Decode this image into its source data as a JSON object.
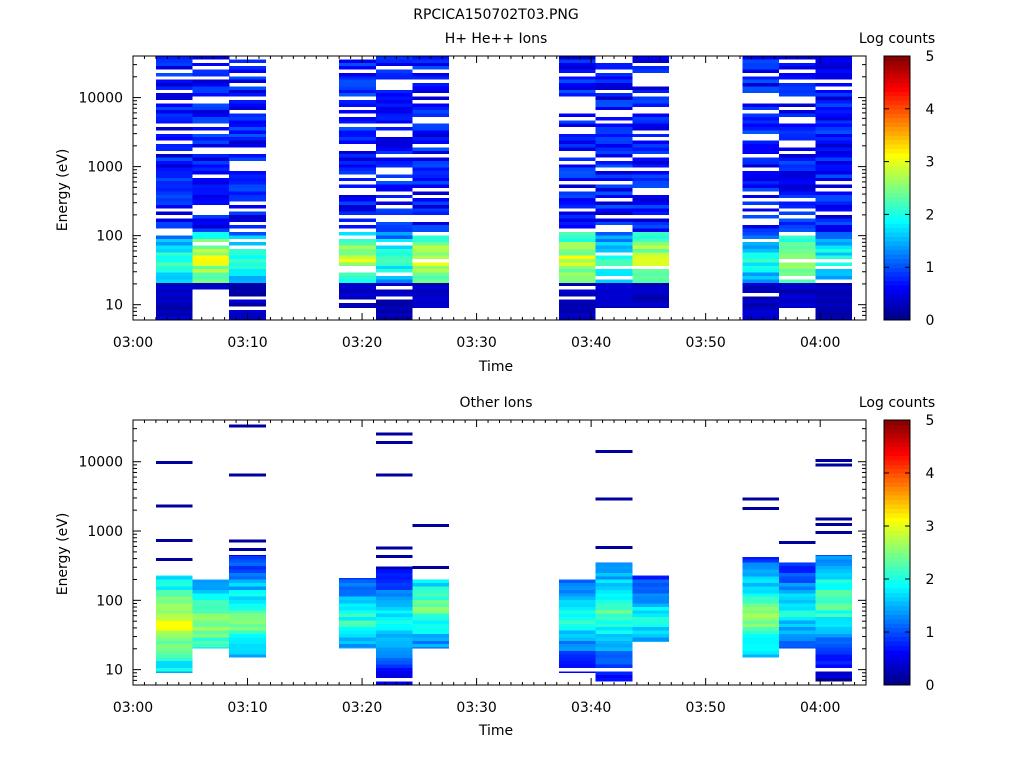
{
  "figure_title": "RPCICA150702T03.PNG",
  "chart_data": [
    {
      "type": "heatmap",
      "title": "H+ He++ Ions",
      "xlabel": "Time",
      "ylabel": "Energy (eV)",
      "x_ticks": [
        "03:00",
        "03:10",
        "03:20",
        "03:30",
        "03:40",
        "03:50",
        "04:00"
      ],
      "y_ticks": [
        "10",
        "100",
        "1000",
        "10000"
      ],
      "y_scale": "log",
      "ylim": [
        6,
        40000
      ],
      "xlim_minutes": [
        0,
        64
      ],
      "colorbar": {
        "label": "Log counts",
        "ticks": [
          "0",
          "1",
          "2",
          "3",
          "4",
          "5"
        ],
        "range": [
          0,
          5
        ]
      },
      "scan_blocks": [
        {
          "start_min": 2.0,
          "end_min": 5.2,
          "lowE": 6,
          "highE": 40000,
          "profile": "low",
          "seed": 11
        },
        {
          "start_min": 5.2,
          "end_min": 8.4,
          "lowE": 15,
          "highE": 40000,
          "profile": "mid",
          "seed": 12
        },
        {
          "start_min": 8.4,
          "end_min": 11.6,
          "lowE": 6,
          "highE": 40000,
          "profile": "low",
          "seed": 13
        },
        {
          "start_min": 18.0,
          "end_min": 21.2,
          "lowE": 9,
          "highE": 40000,
          "profile": "mid",
          "seed": 21
        },
        {
          "start_min": 21.2,
          "end_min": 24.4,
          "lowE": 6,
          "highE": 40000,
          "profile": "low",
          "seed": 22
        },
        {
          "start_min": 24.4,
          "end_min": 27.6,
          "lowE": 9,
          "highE": 40000,
          "profile": "mid",
          "seed": 23
        },
        {
          "start_min": 37.2,
          "end_min": 40.4,
          "lowE": 6,
          "highE": 40000,
          "profile": "mid",
          "seed": 31
        },
        {
          "start_min": 40.4,
          "end_min": 43.6,
          "lowE": 9,
          "highE": 40000,
          "profile": "low",
          "seed": 32
        },
        {
          "start_min": 43.6,
          "end_min": 46.8,
          "lowE": 9,
          "highE": 40000,
          "profile": "mid",
          "seed": 33
        },
        {
          "start_min": 53.2,
          "end_min": 56.4,
          "lowE": 6,
          "highE": 40000,
          "profile": "low",
          "seed": 41
        },
        {
          "start_min": 56.4,
          "end_min": 59.6,
          "lowE": 9,
          "highE": 40000,
          "profile": "mid",
          "seed": 42
        },
        {
          "start_min": 59.6,
          "end_min": 62.8,
          "lowE": 6,
          "highE": 40000,
          "profile": "low",
          "seed": 43
        }
      ]
    },
    {
      "type": "heatmap",
      "title": "Other Ions",
      "xlabel": "Time",
      "ylabel": "Energy (eV)",
      "x_ticks": [
        "03:00",
        "03:10",
        "03:20",
        "03:30",
        "03:40",
        "03:50",
        "04:00"
      ],
      "y_ticks": [
        "10",
        "100",
        "1000",
        "10000"
      ],
      "y_scale": "log",
      "ylim": [
        6,
        40000
      ],
      "xlim_minutes": [
        0,
        64
      ],
      "colorbar": {
        "label": "Log counts",
        "ticks": [
          "0",
          "1",
          "2",
          "3",
          "4",
          "5"
        ],
        "range": [
          0,
          5
        ]
      },
      "scan_blocks": [
        {
          "start_min": 2.0,
          "end_min": 5.2,
          "lowE": 9,
          "highE": 230,
          "peakE": 45,
          "peak": 3.0,
          "seed": 51
        },
        {
          "start_min": 5.2,
          "end_min": 8.4,
          "lowE": 20,
          "highE": 200,
          "peakE": 45,
          "peak": 2.6,
          "seed": 52
        },
        {
          "start_min": 8.4,
          "end_min": 11.6,
          "lowE": 15,
          "highE": 450,
          "peakE": 50,
          "peak": 2.5,
          "seed": 53
        },
        {
          "start_min": 18.0,
          "end_min": 21.2,
          "lowE": 20,
          "highE": 210,
          "peakE": 50,
          "peak": 2.1,
          "seed": 61
        },
        {
          "start_min": 21.2,
          "end_min": 24.4,
          "lowE": 6,
          "highE": 310,
          "peakE": 45,
          "peak": 2.0,
          "seed": 62
        },
        {
          "start_min": 24.4,
          "end_min": 27.6,
          "lowE": 20,
          "highE": 200,
          "peakE": 80,
          "peak": 2.4,
          "seed": 63
        },
        {
          "start_min": 37.2,
          "end_min": 40.4,
          "lowE": 9,
          "highE": 200,
          "peakE": 60,
          "peak": 2.1,
          "seed": 71
        },
        {
          "start_min": 40.4,
          "end_min": 43.6,
          "lowE": 6,
          "highE": 350,
          "peakE": 70,
          "peak": 2.4,
          "seed": 72
        },
        {
          "start_min": 43.6,
          "end_min": 46.8,
          "lowE": 25,
          "highE": 230,
          "peakE": 50,
          "peak": 2.0,
          "seed": 73
        },
        {
          "start_min": 53.2,
          "end_min": 56.4,
          "lowE": 15,
          "highE": 420,
          "peakE": 55,
          "peak": 2.6,
          "seed": 81
        },
        {
          "start_min": 56.4,
          "end_min": 59.6,
          "lowE": 20,
          "highE": 350,
          "peakE": 70,
          "peak": 2.0,
          "seed": 82
        },
        {
          "start_min": 59.6,
          "end_min": 62.8,
          "lowE": 6,
          "highE": 450,
          "peakE": 100,
          "peak": 2.4,
          "seed": 83
        }
      ],
      "isolated_lines": [
        {
          "start_min": 2.0,
          "end_min": 5.2,
          "energies": [
            9800,
            2300,
            730,
            390
          ]
        },
        {
          "start_min": 8.4,
          "end_min": 11.6,
          "energies": [
            33000,
            6400,
            720,
            540
          ]
        },
        {
          "start_min": 21.2,
          "end_min": 24.4,
          "energies": [
            25000,
            19000,
            6400,
            570,
            430
          ]
        },
        {
          "start_min": 24.4,
          "end_min": 27.6,
          "energies": [
            1200,
            300
          ]
        },
        {
          "start_min": 40.4,
          "end_min": 43.6,
          "energies": [
            14000,
            2900,
            580
          ]
        },
        {
          "start_min": 53.2,
          "end_min": 56.4,
          "energies": [
            2900,
            2100
          ]
        },
        {
          "start_min": 56.4,
          "end_min": 59.6,
          "energies": [
            680
          ]
        },
        {
          "start_min": 59.6,
          "end_min": 62.8,
          "energies": [
            10500,
            9000,
            1500,
            1250,
            950
          ]
        }
      ]
    }
  ]
}
